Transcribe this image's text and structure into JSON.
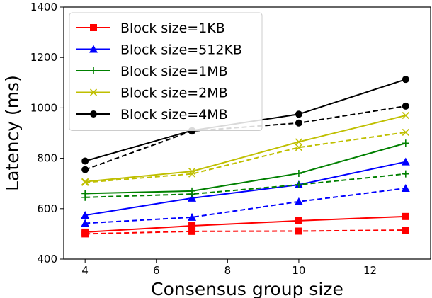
{
  "chart_data": {
    "type": "line",
    "title": "",
    "xlabel": "Consensus group size",
    "ylabel": "Latency (ms)",
    "xlim": [
      3.4,
      13.7
    ],
    "ylim": [
      400,
      1400
    ],
    "xticks": [
      4,
      6,
      8,
      10,
      12
    ],
    "yticks": [
      400,
      600,
      800,
      1000,
      1200,
      1400
    ],
    "x": [
      4,
      7,
      10,
      13
    ],
    "grid": false,
    "legend_position": "top-left",
    "series": [
      {
        "name": "Block size=1KB",
        "color": "#ff0000",
        "marker": "square",
        "style": "solid",
        "values": [
          507,
          532,
          552,
          569
        ]
      },
      {
        "name": "",
        "color": "#ff0000",
        "marker": "square",
        "style": "dashed",
        "values": [
          500,
          510,
          511,
          515
        ]
      },
      {
        "name": "Block size=512KB",
        "color": "#0000ff",
        "marker": "triangle",
        "style": "solid",
        "values": [
          574,
          642,
          695,
          786
        ]
      },
      {
        "name": "",
        "color": "#0000ff",
        "marker": "triangle",
        "style": "dashed",
        "values": [
          542,
          566,
          628,
          681
        ]
      },
      {
        "name": "Block size=1MB",
        "color": "#008000",
        "marker": "plus",
        "style": "solid",
        "values": [
          660,
          670,
          740,
          860
        ]
      },
      {
        "name": "",
        "color": "#008000",
        "marker": "plus",
        "style": "dashed",
        "values": [
          645,
          658,
          695,
          738
        ]
      },
      {
        "name": "Block size=2MB",
        "color": "#bfbf00",
        "marker": "x",
        "style": "solid",
        "values": [
          707,
          748,
          865,
          970
        ]
      },
      {
        "name": "",
        "color": "#bfbf00",
        "marker": "x",
        "style": "dashed",
        "values": [
          704,
          738,
          843,
          903
        ]
      },
      {
        "name": "Block size=4MB",
        "color": "#000000",
        "marker": "circle",
        "style": "solid",
        "values": [
          789,
          910,
          975,
          1113
        ]
      },
      {
        "name": "",
        "color": "#000000",
        "marker": "circle",
        "style": "dashed",
        "values": [
          755,
          908,
          940,
          1007
        ]
      }
    ]
  }
}
